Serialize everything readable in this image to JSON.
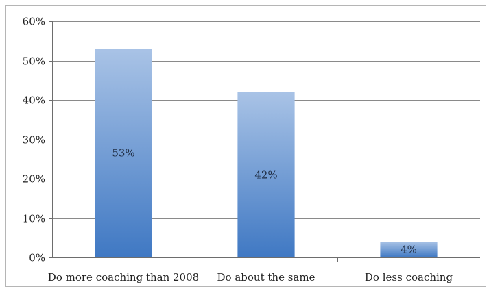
{
  "chart_data": {
    "type": "bar",
    "categories": [
      "Do more coaching than 2008",
      "Do about the same",
      "Do less coaching"
    ],
    "values": [
      53,
      42,
      4
    ],
    "data_labels": [
      "53%",
      "42%",
      "4%"
    ],
    "ylim": [
      0,
      60
    ],
    "yticks": [
      0,
      10,
      20,
      30,
      40,
      50,
      60
    ],
    "ytick_labels": [
      "0%",
      "10%",
      "20%",
      "30%",
      "40%",
      "50%",
      "60%"
    ],
    "grid": true,
    "legend": "none",
    "colors": {
      "bar_top": "#a9c3e6",
      "bar_bottom": "#3f78c3",
      "gridline": "#8a8a8a",
      "frame": "#b5b5b5"
    }
  }
}
